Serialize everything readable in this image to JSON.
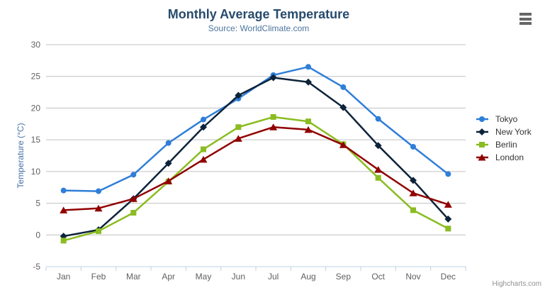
{
  "header": {
    "title": "Monthly Average Temperature",
    "subtitle": "Source: WorldClimate.com"
  },
  "icons": {
    "context_menu": "hamburger-menu-icon"
  },
  "credits": "Highcharts.com",
  "colors": {
    "background": "#ffffff",
    "title": "#274b6d",
    "subtitle": "#4d759e",
    "yaxis_title": "#4572a7",
    "grid": "#c0c0c0",
    "axis_line": "#c0d0e0",
    "tick_label": "#606060",
    "legend_text": "#333333",
    "credits": "#909090",
    "menu_icon": "#666666"
  },
  "chart_data": {
    "type": "line",
    "title": "Monthly Average Temperature",
    "subtitle": "Source: WorldClimate.com",
    "xlabel": "",
    "ylabel": "Temperature (°C)",
    "ylim": [
      -5,
      30
    ],
    "ytick_step": 5,
    "grid": true,
    "legend_position": "right",
    "categories": [
      "Jan",
      "Feb",
      "Mar",
      "Apr",
      "May",
      "Jun",
      "Jul",
      "Aug",
      "Sep",
      "Oct",
      "Nov",
      "Dec"
    ],
    "series": [
      {
        "name": "Tokyo",
        "color": "#2f7ed8",
        "marker": "circle",
        "values": [
          7.0,
          6.9,
          9.5,
          14.5,
          18.2,
          21.5,
          25.2,
          26.5,
          23.3,
          18.3,
          13.9,
          9.6
        ]
      },
      {
        "name": "New York",
        "color": "#0d233a",
        "marker": "diamond",
        "values": [
          -0.2,
          0.8,
          5.7,
          11.3,
          17.0,
          22.0,
          24.8,
          24.1,
          20.1,
          14.1,
          8.6,
          2.5
        ]
      },
      {
        "name": "Berlin",
        "color": "#8bbc21",
        "marker": "square",
        "values": [
          -0.9,
          0.6,
          3.5,
          8.4,
          13.5,
          17.0,
          18.6,
          17.9,
          14.3,
          9.0,
          3.9,
          1.0
        ]
      },
      {
        "name": "London",
        "color": "#910000",
        "marker": "triangle-up",
        "values": [
          3.9,
          4.2,
          5.7,
          8.5,
          11.9,
          15.2,
          17.0,
          16.6,
          14.2,
          10.3,
          6.6,
          4.8
        ]
      }
    ]
  }
}
